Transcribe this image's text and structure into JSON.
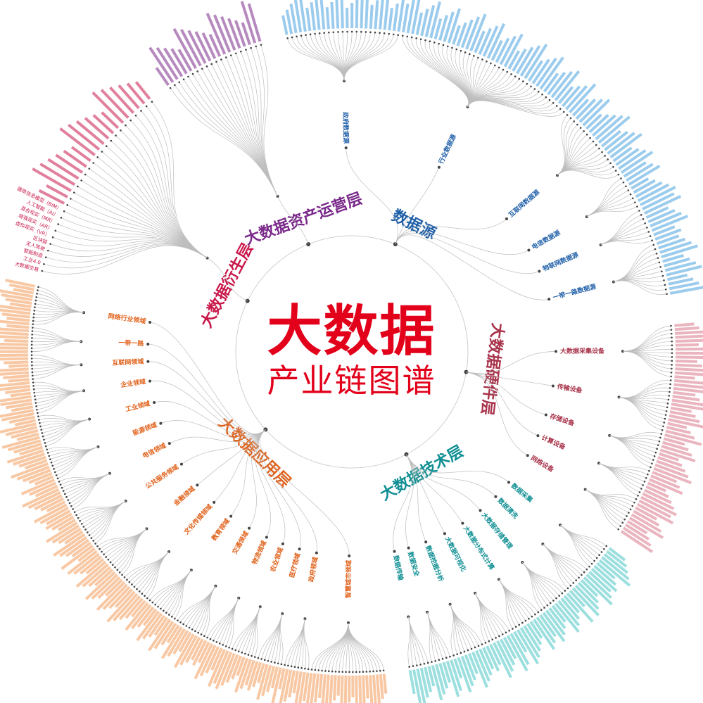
{
  "title": {
    "main": "大数据",
    "sub": "产业链图谱",
    "color": "#e2001a"
  },
  "layers": [
    {
      "name": "数据源",
      "color": "#1f5fa8",
      "leaf_color": "#4aa3df",
      "children": [
        {
          "name": "政府数据源",
          "leaves": 25
        },
        {
          "name": "行业数据源",
          "leaves": 40
        },
        {
          "name": "互联网数据源",
          "leaves": 18
        },
        {
          "name": "电信数据源",
          "leaves": 8
        },
        {
          "name": "物联网数据源",
          "leaves": 8
        },
        {
          "name": "一带一路数据源",
          "leaves": 12
        }
      ]
    },
    {
      "name": "大数据硬件层",
      "color": "#a8324a",
      "leaf_color": "#d9788a",
      "children": [
        {
          "name": "大数据采集设备",
          "leaves": 14
        },
        {
          "name": "传输设备",
          "leaves": 14
        },
        {
          "name": "存储设备",
          "leaves": 10
        },
        {
          "name": "计算设备",
          "leaves": 8
        },
        {
          "name": "网络设备",
          "leaves": 10
        }
      ]
    },
    {
      "name": "大数据技术层",
      "color": "#0f8f93",
      "leaf_color": "#4cc4c4",
      "children": [
        {
          "name": "数据采集",
          "leaves": 8
        },
        {
          "name": "数据清洗",
          "leaves": 8
        },
        {
          "name": "大数据存储管理",
          "leaves": 9
        },
        {
          "name": "大数据分布式计算",
          "leaves": 9
        },
        {
          "name": "大数据可视化",
          "leaves": 8
        },
        {
          "name": "数据挖掘分析",
          "leaves": 9
        },
        {
          "name": "数据安全",
          "leaves": 6
        },
        {
          "name": "数据传输",
          "leaves": 6
        }
      ]
    },
    {
      "name": "大数据应用层",
      "color": "#e0611a",
      "leaf_color": "#f39a5a",
      "children": [
        {
          "name": "智慧城市领域",
          "leaves": 22
        },
        {
          "name": "政府领域",
          "leaves": 8
        },
        {
          "name": "医疗领域",
          "leaves": 8
        },
        {
          "name": "农业领域",
          "leaves": 8
        },
        {
          "name": "物流领域",
          "leaves": 8
        },
        {
          "name": "交通领域",
          "leaves": 10
        },
        {
          "name": "教育领域",
          "leaves": 10
        },
        {
          "name": "文化传媒领域",
          "leaves": 10
        },
        {
          "name": "金融领域",
          "leaves": 12
        },
        {
          "name": "公共服务领域",
          "leaves": 12
        },
        {
          "name": "电信领域",
          "leaves": 10
        },
        {
          "name": "能源领域",
          "leaves": 10
        },
        {
          "name": "工业领域",
          "leaves": 10
        },
        {
          "name": "企业领域",
          "leaves": 10
        },
        {
          "name": "互联网领域",
          "leaves": 8
        },
        {
          "name": "一带一路",
          "leaves": 8
        },
        {
          "name": "网络行业领域",
          "leaves": 12
        }
      ]
    },
    {
      "name": "大数据衍生层",
      "color": "#c8184a",
      "leaf_color": "#c8184a",
      "leaf_labels": [
        "大数据交易",
        "工业4.0",
        "智能制造",
        "无人驾驶",
        "区块链",
        "虚拟现实（VR）",
        "增强现实（AR）",
        "混合现实（MR）",
        "人工智能（AI）",
        "建筑信息模型（BIM）"
      ],
      "leaves": 30
    },
    {
      "name": "大数据资产运营层",
      "color": "#7a2a8a",
      "leaf_color": "#7a2a8a",
      "leaves": 20
    }
  ]
}
